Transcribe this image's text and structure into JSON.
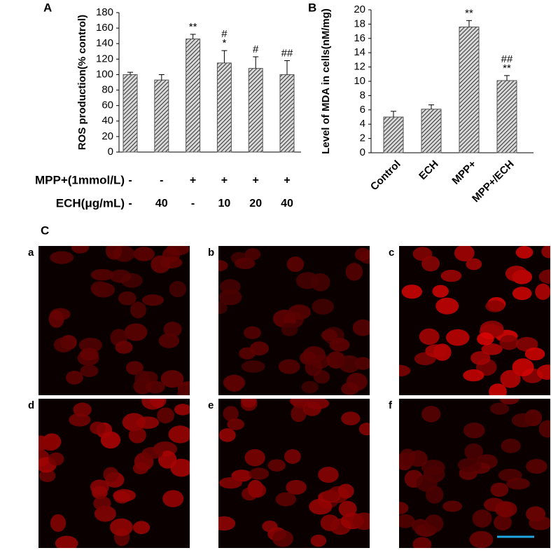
{
  "chart_data": [
    {
      "type": "bar",
      "panel_label": "A",
      "y_label": "ROS production(% control)",
      "values": [
        100,
        93,
        146,
        115,
        108,
        100
      ],
      "errors": [
        3,
        7,
        6,
        16,
        15,
        18
      ],
      "annotations": [
        null,
        null,
        [
          "**"
        ],
        [
          "#",
          "*"
        ],
        [
          "#"
        ],
        [
          "##"
        ]
      ],
      "conditions": [
        {
          "label": "MPP+(1mmol/L)",
          "values": [
            "-",
            "-",
            "+",
            "+",
            "+",
            "+"
          ]
        },
        {
          "label": "ECH(μg/mL)",
          "values": [
            "-",
            "40",
            "-",
            "10",
            "20",
            "40"
          ]
        }
      ],
      "ylim": [
        0,
        180
      ],
      "yticks": [
        0,
        20,
        40,
        60,
        80,
        100,
        120,
        140,
        160,
        180
      ],
      "color": "#555555"
    },
    {
      "type": "bar",
      "panel_label": "B",
      "y_label": "Level of MDA in cells(nM/mg)",
      "categories": [
        "Control",
        "ECH",
        "MPP+",
        "MPP+/ECH"
      ],
      "values": [
        5.0,
        6.1,
        17.6,
        10.1
      ],
      "errors": [
        0.8,
        0.6,
        0.9,
        0.7
      ],
      "annotations": [
        null,
        null,
        [
          "**"
        ],
        [
          "##",
          "**"
        ]
      ],
      "ylim": [
        0,
        20
      ],
      "yticks": [
        0,
        2,
        4,
        6,
        8,
        10,
        12,
        14,
        16,
        18,
        20
      ],
      "color": "#555555"
    }
  ],
  "panel_c": {
    "label": "C",
    "images": [
      {
        "label": "a"
      },
      {
        "label": "b"
      },
      {
        "label": "c"
      },
      {
        "label": "d"
      },
      {
        "label": "e"
      },
      {
        "label": "f"
      }
    ]
  }
}
